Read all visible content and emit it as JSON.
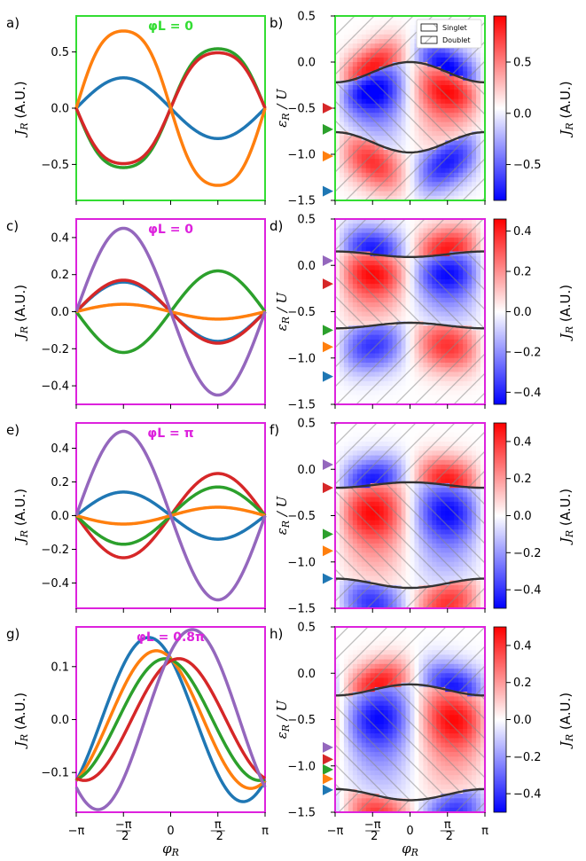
{
  "chart_data": [
    {
      "panel": "a)",
      "type": "line",
      "title": "φL = 0",
      "frame_color": "#33dd33",
      "ylabel": "J_R (A.U.)",
      "ylim": [
        -0.82,
        0.82
      ],
      "yticks": [
        "0.5",
        "0.0",
        "−0.5"
      ],
      "ytick_values": [
        0.5,
        0,
        -0.5
      ],
      "series": [
        {
          "color": "#1f77b4",
          "amp": -0.27,
          "shape": "sin"
        },
        {
          "color": "#2ca02c",
          "amp": 0.6,
          "shape": "sin2"
        },
        {
          "color": "#d62728",
          "amp": 0.56,
          "shape": "sin2"
        },
        {
          "color": "#ff7f0e",
          "amp": -0.78,
          "shape": "sin2"
        }
      ]
    },
    {
      "panel": "b)",
      "type": "heatmap",
      "ylabel": "ε_R / U",
      "clabel": "J_R (A.U.)",
      "ylim": [
        -1.5,
        0.5
      ],
      "yticks": [
        "0.5",
        "0.0",
        "−0.5",
        "−1.0",
        "−1.5"
      ],
      "ytick_values": [
        0.5,
        0,
        -0.5,
        -1,
        -1.5
      ],
      "cticks": [
        "0.5",
        "0.0",
        "−0.5"
      ],
      "ctick_values": [
        0.5,
        0,
        -0.5
      ],
      "clim": [
        -0.85,
        0.95
      ],
      "legend": {
        "singlet": "Singlet",
        "doublet": "Doublet"
      },
      "boundaries": [
        [
          0,
          -0.22
        ],
        [
          -0.98,
          -0.76
        ]
      ],
      "markers": [
        {
          "y": -0.5,
          "color": "#d62728"
        },
        {
          "y": -0.73,
          "color": "#2ca02c"
        },
        {
          "y": -1.02,
          "color": "#ff7f0e"
        },
        {
          "y": -1.4,
          "color": "#1f77b4"
        }
      ]
    },
    {
      "panel": "c)",
      "type": "line",
      "title": "φL = 0",
      "frame_color": "#dd22dd",
      "ylabel": "J_R (A.U.)",
      "ylim": [
        -0.5,
        0.5
      ],
      "yticks": [
        "0.4",
        "0.2",
        "0.0",
        "−0.2",
        "−0.4"
      ],
      "ytick_values": [
        0.4,
        0.2,
        0,
        -0.2,
        -0.4
      ],
      "series": [
        {
          "color": "#1f77b4",
          "amp": -0.16,
          "shape": "sin"
        },
        {
          "color": "#d62728",
          "amp": -0.17,
          "shape": "sin"
        },
        {
          "color": "#2ca02c",
          "amp": 0.22,
          "shape": "sin"
        },
        {
          "color": "#ff7f0e",
          "amp": -0.04,
          "shape": "sin"
        },
        {
          "color": "#9467bd",
          "amp": -0.45,
          "shape": "sin"
        }
      ]
    },
    {
      "panel": "d)",
      "type": "heatmap",
      "ylabel": "ε_R / U",
      "clabel": "J_R (A.U.)",
      "ylim": [
        -1.5,
        0.5
      ],
      "yticks": [
        "0.5",
        "0.0",
        "−0.5",
        "−1.0",
        "−1.5"
      ],
      "ytick_values": [
        0.5,
        0,
        -0.5,
        -1,
        -1.5
      ],
      "cticks": [
        "0.4",
        "0.2",
        "0.0",
        "−0.2",
        "−0.4"
      ],
      "ctick_values": [
        0.4,
        0.2,
        0,
        -0.2,
        -0.4
      ],
      "clim": [
        -0.46,
        0.46
      ],
      "boundaries": [
        [
          0.09,
          0.15
        ],
        [
          -0.62,
          -0.68
        ]
      ],
      "markers": [
        {
          "y": 0.05,
          "color": "#9467bd"
        },
        {
          "y": -0.2,
          "color": "#d62728"
        },
        {
          "y": -0.7,
          "color": "#2ca02c"
        },
        {
          "y": -0.88,
          "color": "#ff7f0e"
        },
        {
          "y": -1.2,
          "color": "#1f77b4"
        }
      ]
    },
    {
      "panel": "e)",
      "type": "line",
      "title": "φL = π",
      "frame_color": "#dd22dd",
      "ylabel": "J_R (A.U.)",
      "ylim": [
        -0.55,
        0.55
      ],
      "yticks": [
        "0.4",
        "0.2",
        "0.0",
        "−0.2",
        "−0.4"
      ],
      "ytick_values": [
        0.4,
        0.2,
        0,
        -0.2,
        -0.4
      ],
      "series": [
        {
          "color": "#1f77b4",
          "amp": -0.14,
          "shape": "sin"
        },
        {
          "color": "#d62728",
          "amp": 0.25,
          "shape": "sin"
        },
        {
          "color": "#2ca02c",
          "amp": 0.17,
          "shape": "sin"
        },
        {
          "color": "#ff7f0e",
          "amp": 0.05,
          "shape": "sin"
        },
        {
          "color": "#9467bd",
          "amp": -0.5,
          "shape": "sin"
        }
      ]
    },
    {
      "panel": "f)",
      "type": "heatmap",
      "ylabel": "ε_R / U",
      "clabel": "J_R (A.U.)",
      "ylim": [
        -1.5,
        0.5
      ],
      "yticks": [
        "0.5",
        "0.0",
        "−0.5",
        "−1.0",
        "−1.5"
      ],
      "ytick_values": [
        0.5,
        0,
        -0.5,
        -1,
        -1.5
      ],
      "cticks": [
        "0.4",
        "0.2",
        "0.0",
        "−0.2",
        "−0.4"
      ],
      "ctick_values": [
        0.4,
        0.2,
        0,
        -0.2,
        -0.4
      ],
      "clim": [
        -0.5,
        0.5
      ],
      "boundaries": [
        [
          -0.14,
          -0.2
        ],
        [
          -1.28,
          -1.18
        ]
      ],
      "markers": [
        {
          "y": 0.05,
          "color": "#9467bd"
        },
        {
          "y": -0.2,
          "color": "#d62728"
        },
        {
          "y": -0.7,
          "color": "#2ca02c"
        },
        {
          "y": -0.88,
          "color": "#ff7f0e"
        },
        {
          "y": -1.18,
          "color": "#1f77b4"
        }
      ]
    },
    {
      "panel": "g)",
      "type": "line",
      "title": "φL = 0.8π",
      "frame_color": "#dd22dd",
      "ylabel": "J_R (A.U.)",
      "ylim": [
        -0.175,
        0.175
      ],
      "yticks": [
        "0.1",
        "0.0",
        "−0.1"
      ],
      "ytick_values": [
        0.1,
        0,
        -0.1
      ],
      "xlabel": "φ_R",
      "xticks": [
        "−π",
        "−π/2",
        "0",
        "π/2",
        "π"
      ],
      "series": [
        {
          "color": "#1f77b4",
          "amp": 0.155,
          "phase": 2.3,
          "shape": "shift"
        },
        {
          "color": "#ff7f0e",
          "amp": 0.13,
          "phase": 2.05,
          "shape": "shift"
        },
        {
          "color": "#2ca02c",
          "amp": 0.115,
          "phase": 1.75,
          "shape": "shift"
        },
        {
          "color": "#d62728",
          "amp": 0.115,
          "phase": 1.3,
          "shape": "shift"
        },
        {
          "color": "#9467bd",
          "amp": 0.17,
          "phase": 0.85,
          "shape": "shift"
        }
      ]
    },
    {
      "panel": "h)",
      "type": "heatmap",
      "ylabel": "ε_R / U",
      "clabel": "J_R (A.U.)",
      "ylim": [
        -1.5,
        0.5
      ],
      "yticks": [
        "0.5",
        "0.0",
        "−0.5",
        "−1.0",
        "−1.5"
      ],
      "ytick_values": [
        0.5,
        0,
        -0.5,
        -1,
        -1.5
      ],
      "cticks": [
        "0.4",
        "0.2",
        "0.0",
        "−0.2",
        "−0.4"
      ],
      "ctick_values": [
        0.4,
        0.2,
        0,
        -0.2,
        -0.4
      ],
      "clim": [
        -0.5,
        0.5
      ],
      "xlabel": "φ_R",
      "xticks": [
        "−π",
        "−π/2",
        "0",
        "π/2",
        "π"
      ],
      "boundaries": [
        [
          -0.12,
          -0.24
        ],
        [
          -1.37,
          -1.25
        ]
      ],
      "markers": [
        {
          "y": -0.8,
          "color": "#9467bd"
        },
        {
          "y": -0.93,
          "color": "#d62728"
        },
        {
          "y": -1.04,
          "color": "#2ca02c"
        },
        {
          "y": -1.14,
          "color": "#ff7f0e"
        },
        {
          "y": -1.26,
          "color": "#1f77b4"
        }
      ]
    }
  ]
}
